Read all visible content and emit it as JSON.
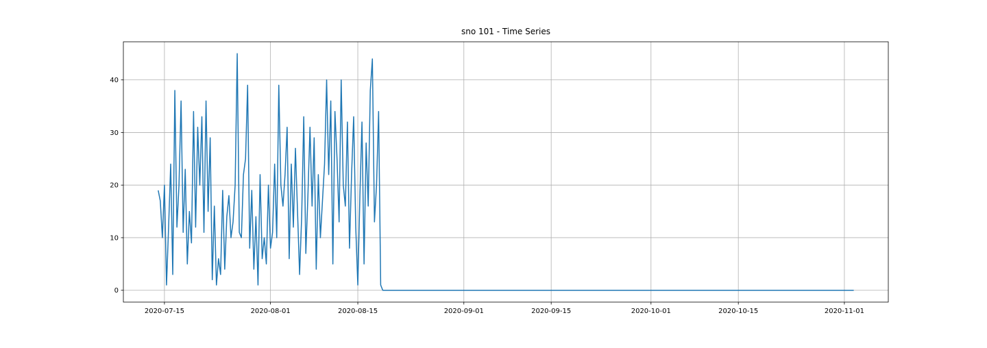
{
  "chart_data": {
    "type": "line",
    "title": "sno 101 - Time Series",
    "x": [
      "2020-07-14T00:00",
      "2020-07-14T08:00",
      "2020-07-14T16:00",
      "2020-07-15T00:00",
      "2020-07-15T08:00",
      "2020-07-15T16:00",
      "2020-07-16T00:00",
      "2020-07-16T08:00",
      "2020-07-16T16:00",
      "2020-07-17T00:00",
      "2020-07-17T08:00",
      "2020-07-17T16:00",
      "2020-07-18T00:00",
      "2020-07-18T08:00",
      "2020-07-18T16:00",
      "2020-07-19T00:00",
      "2020-07-19T08:00",
      "2020-07-19T16:00",
      "2020-07-20T00:00",
      "2020-07-20T08:00",
      "2020-07-20T16:00",
      "2020-07-21T00:00",
      "2020-07-21T08:00",
      "2020-07-21T16:00",
      "2020-07-22T00:00",
      "2020-07-22T08:00",
      "2020-07-22T16:00",
      "2020-07-23T00:00",
      "2020-07-23T08:00",
      "2020-07-23T16:00",
      "2020-07-24T00:00",
      "2020-07-24T08:00",
      "2020-07-24T16:00",
      "2020-07-25T00:00",
      "2020-07-25T08:00",
      "2020-07-25T16:00",
      "2020-07-26T00:00",
      "2020-07-26T08:00",
      "2020-07-26T16:00",
      "2020-07-27T00:00",
      "2020-07-27T08:00",
      "2020-07-27T16:00",
      "2020-07-28T00:00",
      "2020-07-28T08:00",
      "2020-07-28T16:00",
      "2020-07-29T00:00",
      "2020-07-29T08:00",
      "2020-07-29T16:00",
      "2020-07-30T00:00",
      "2020-07-30T08:00",
      "2020-07-30T16:00",
      "2020-07-31T00:00",
      "2020-07-31T08:00",
      "2020-07-31T16:00",
      "2020-08-01T00:00",
      "2020-08-01T08:00",
      "2020-08-01T16:00",
      "2020-08-02T00:00",
      "2020-08-02T08:00",
      "2020-08-02T16:00",
      "2020-08-03T00:00",
      "2020-08-03T08:00",
      "2020-08-03T16:00",
      "2020-08-04T00:00",
      "2020-08-04T08:00",
      "2020-08-04T16:00",
      "2020-08-05T00:00",
      "2020-08-05T08:00",
      "2020-08-05T16:00",
      "2020-08-06T00:00",
      "2020-08-06T08:00",
      "2020-08-06T16:00",
      "2020-08-07T00:00",
      "2020-08-07T08:00",
      "2020-08-07T16:00",
      "2020-08-08T00:00",
      "2020-08-08T08:00",
      "2020-08-08T16:00",
      "2020-08-09T00:00",
      "2020-08-09T08:00",
      "2020-08-09T16:00",
      "2020-08-10T00:00",
      "2020-08-10T08:00",
      "2020-08-10T16:00",
      "2020-08-11T00:00",
      "2020-08-11T08:00",
      "2020-08-11T16:00",
      "2020-08-12T00:00",
      "2020-08-12T08:00",
      "2020-08-12T16:00",
      "2020-08-13T00:00",
      "2020-08-13T08:00",
      "2020-08-13T16:00",
      "2020-08-14T00:00",
      "2020-08-14T08:00",
      "2020-08-14T16:00",
      "2020-08-15T00:00",
      "2020-08-15T08:00",
      "2020-08-15T16:00",
      "2020-08-16T00:00",
      "2020-08-16T08:00",
      "2020-08-16T16:00",
      "2020-08-17T00:00",
      "2020-08-17T08:00",
      "2020-08-17T16:00",
      "2020-08-18T00:00",
      "2020-08-18T08:00",
      "2020-08-18T16:00",
      "2020-08-19T00:00",
      "2020-11-02T12:00"
    ],
    "values": [
      19,
      17,
      10,
      20,
      1,
      12,
      24,
      3,
      38,
      12,
      20,
      36,
      11,
      23,
      5,
      15,
      9,
      34,
      12,
      31,
      20,
      33,
      11,
      36,
      15,
      29,
      2,
      16,
      1,
      6,
      3,
      19,
      4,
      14,
      18,
      10,
      13,
      20,
      45,
      11,
      10,
      22,
      25,
      39,
      8,
      19,
      4,
      14,
      1,
      22,
      6,
      10,
      5,
      20,
      8,
      11,
      24,
      10,
      39,
      20,
      16,
      22,
      31,
      6,
      24,
      12,
      27,
      15,
      3,
      14,
      33,
      7,
      18,
      31,
      16,
      29,
      4,
      22,
      10,
      17,
      24,
      40,
      22,
      36,
      5,
      34,
      25,
      13,
      40,
      20,
      16,
      32,
      8,
      22,
      33,
      12,
      1,
      18,
      32,
      5,
      28,
      16,
      38,
      44,
      13,
      20,
      34,
      1,
      0,
      0
    ],
    "color": "#1f77b4",
    "xlim": [
      "2020-07-08T10:00",
      "2020-11-08T01:00"
    ],
    "xticks": [
      "2020-07-15",
      "2020-08-01",
      "2020-08-15",
      "2020-09-01",
      "2020-09-15",
      "2020-10-01",
      "2020-10-15",
      "2020-11-01"
    ],
    "ylim": [
      -2.25,
      47.25
    ],
    "yticks": [
      0,
      10,
      20,
      30,
      40
    ],
    "grid": true
  }
}
